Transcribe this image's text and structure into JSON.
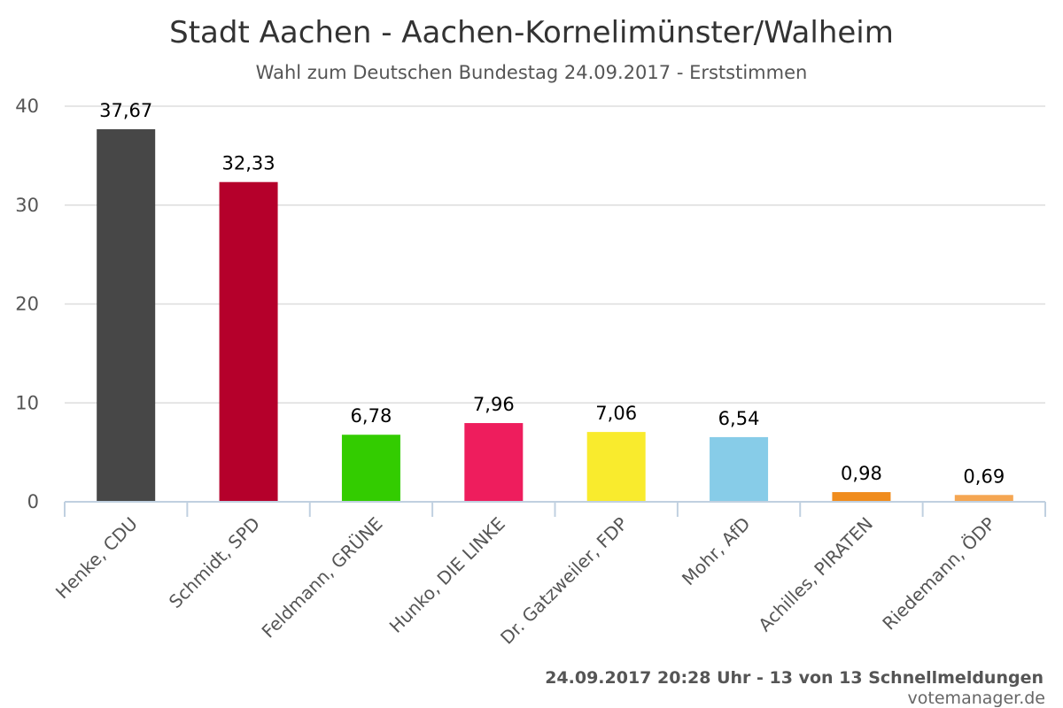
{
  "chart_data": {
    "type": "bar",
    "title": "Stadt Aachen - Aachen-Kornelimünster/Walheim",
    "subtitle": "Wahl zum Deutschen Bundestag 24.09.2017 - Erststimmen",
    "categories": [
      "Henke, CDU",
      "Schmidt, SPD",
      "Feldmann, GRÜNE",
      "Hunko, DIE LINKE",
      "Dr. Gatzweiler, FDP",
      "Mohr, AfD",
      "Achilles, PIRATEN",
      "Riedemann, ÖDP"
    ],
    "values": [
      37.67,
      32.33,
      6.78,
      7.96,
      7.06,
      6.54,
      0.98,
      0.69
    ],
    "value_labels": [
      "37,67",
      "32,33",
      "6,78",
      "7,96",
      "7,06",
      "6,54",
      "0,98",
      "0,69"
    ],
    "colors": [
      "#474747",
      "#b5002b",
      "#33cc00",
      "#ee1d5d",
      "#f9eb2d",
      "#87cce8",
      "#f08c1d",
      "#f5a652"
    ],
    "yticks": [
      "0",
      "10",
      "20",
      "30",
      "40"
    ],
    "ylim": [
      0,
      40
    ],
    "grid": true,
    "xlabel": "",
    "ylabel": ""
  },
  "credits": {
    "line1": "24.09.2017 20:28 Uhr - 13 von 13 Schnellmeldungen",
    "line2": "votemanager.de"
  }
}
